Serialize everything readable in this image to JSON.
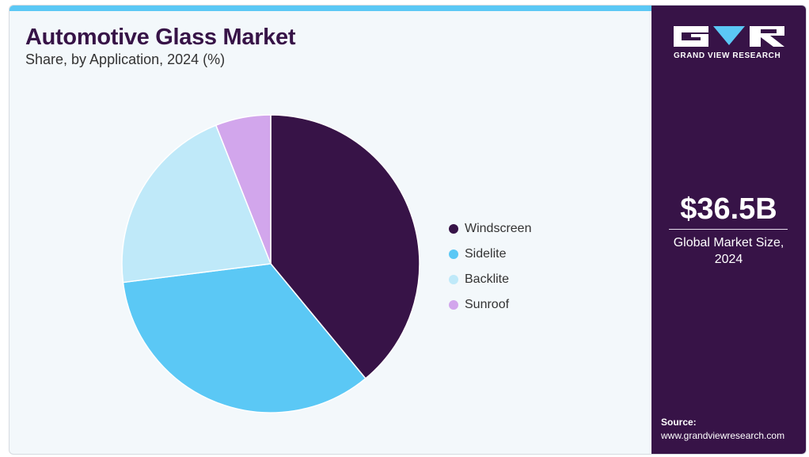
{
  "header": {
    "title": "Automotive Glass Market",
    "subtitle": "Share, by Application, 2024 (%)"
  },
  "chart_data": {
    "type": "pie",
    "title": "Automotive Glass Market",
    "subtitle": "Share, by Application, 2024 (%)",
    "categories": [
      "Windscreen",
      "Sidelite",
      "Backlite",
      "Sunroof"
    ],
    "values": [
      39,
      34,
      21,
      6
    ],
    "colors": [
      "#371347",
      "#5bc8f5",
      "#bfe9f9",
      "#d2a6ec"
    ],
    "start_angle": "12 o'clock, clockwise",
    "legend": "right"
  },
  "sidebar": {
    "brand": "GRAND VIEW RESEARCH",
    "market_value": "$36.5B",
    "market_caption": "Global Market Size, 2024",
    "source_label": "Source:",
    "source_url": "www.grandviewresearch.com"
  },
  "colors": {
    "accent": "#5bc8f5",
    "brand_dark": "#371347"
  }
}
